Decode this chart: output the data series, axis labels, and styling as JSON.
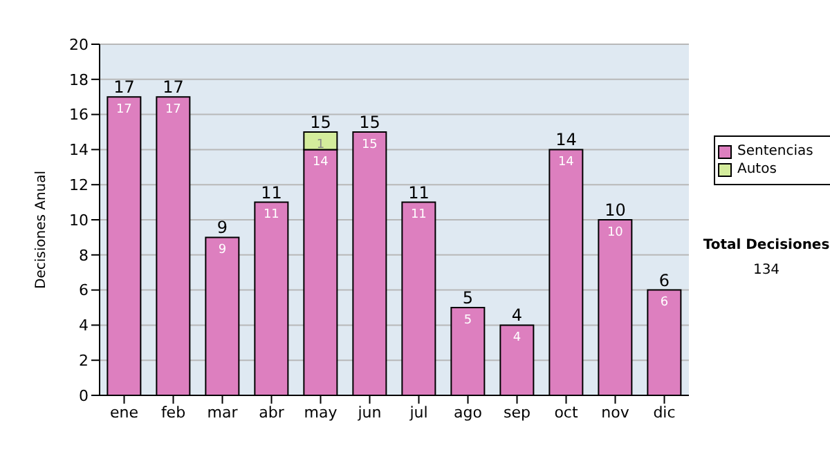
{
  "chart_data": {
    "type": "bar",
    "stacked": true,
    "ylabel": "Decisiones Anual",
    "categories": [
      "ene",
      "feb",
      "mar",
      "abr",
      "may",
      "jun",
      "jul",
      "ago",
      "sep",
      "oct",
      "nov",
      "dic"
    ],
    "series": [
      {
        "name": "Sentencias",
        "color": "#dd7fbf",
        "values": [
          17,
          17,
          9,
          11,
          14,
          15,
          11,
          5,
          4,
          14,
          10,
          6
        ]
      },
      {
        "name": "Autos",
        "color": "#d4ec9c",
        "values": [
          null,
          null,
          null,
          null,
          1,
          null,
          null,
          null,
          null,
          null,
          null,
          null
        ]
      }
    ],
    "totals": [
      "17",
      "17",
      "9",
      "11",
      "15",
      "15",
      "11",
      "5",
      "4",
      "14",
      "10",
      "6"
    ],
    "data_labels": true,
    "ylim": [
      0,
      20
    ],
    "yticks": [
      0,
      2,
      4,
      6,
      8,
      10,
      12,
      14,
      16,
      18,
      20
    ],
    "grid": "y",
    "legend": "right",
    "annotations": [
      "Total Decisiones",
      "134"
    ]
  }
}
